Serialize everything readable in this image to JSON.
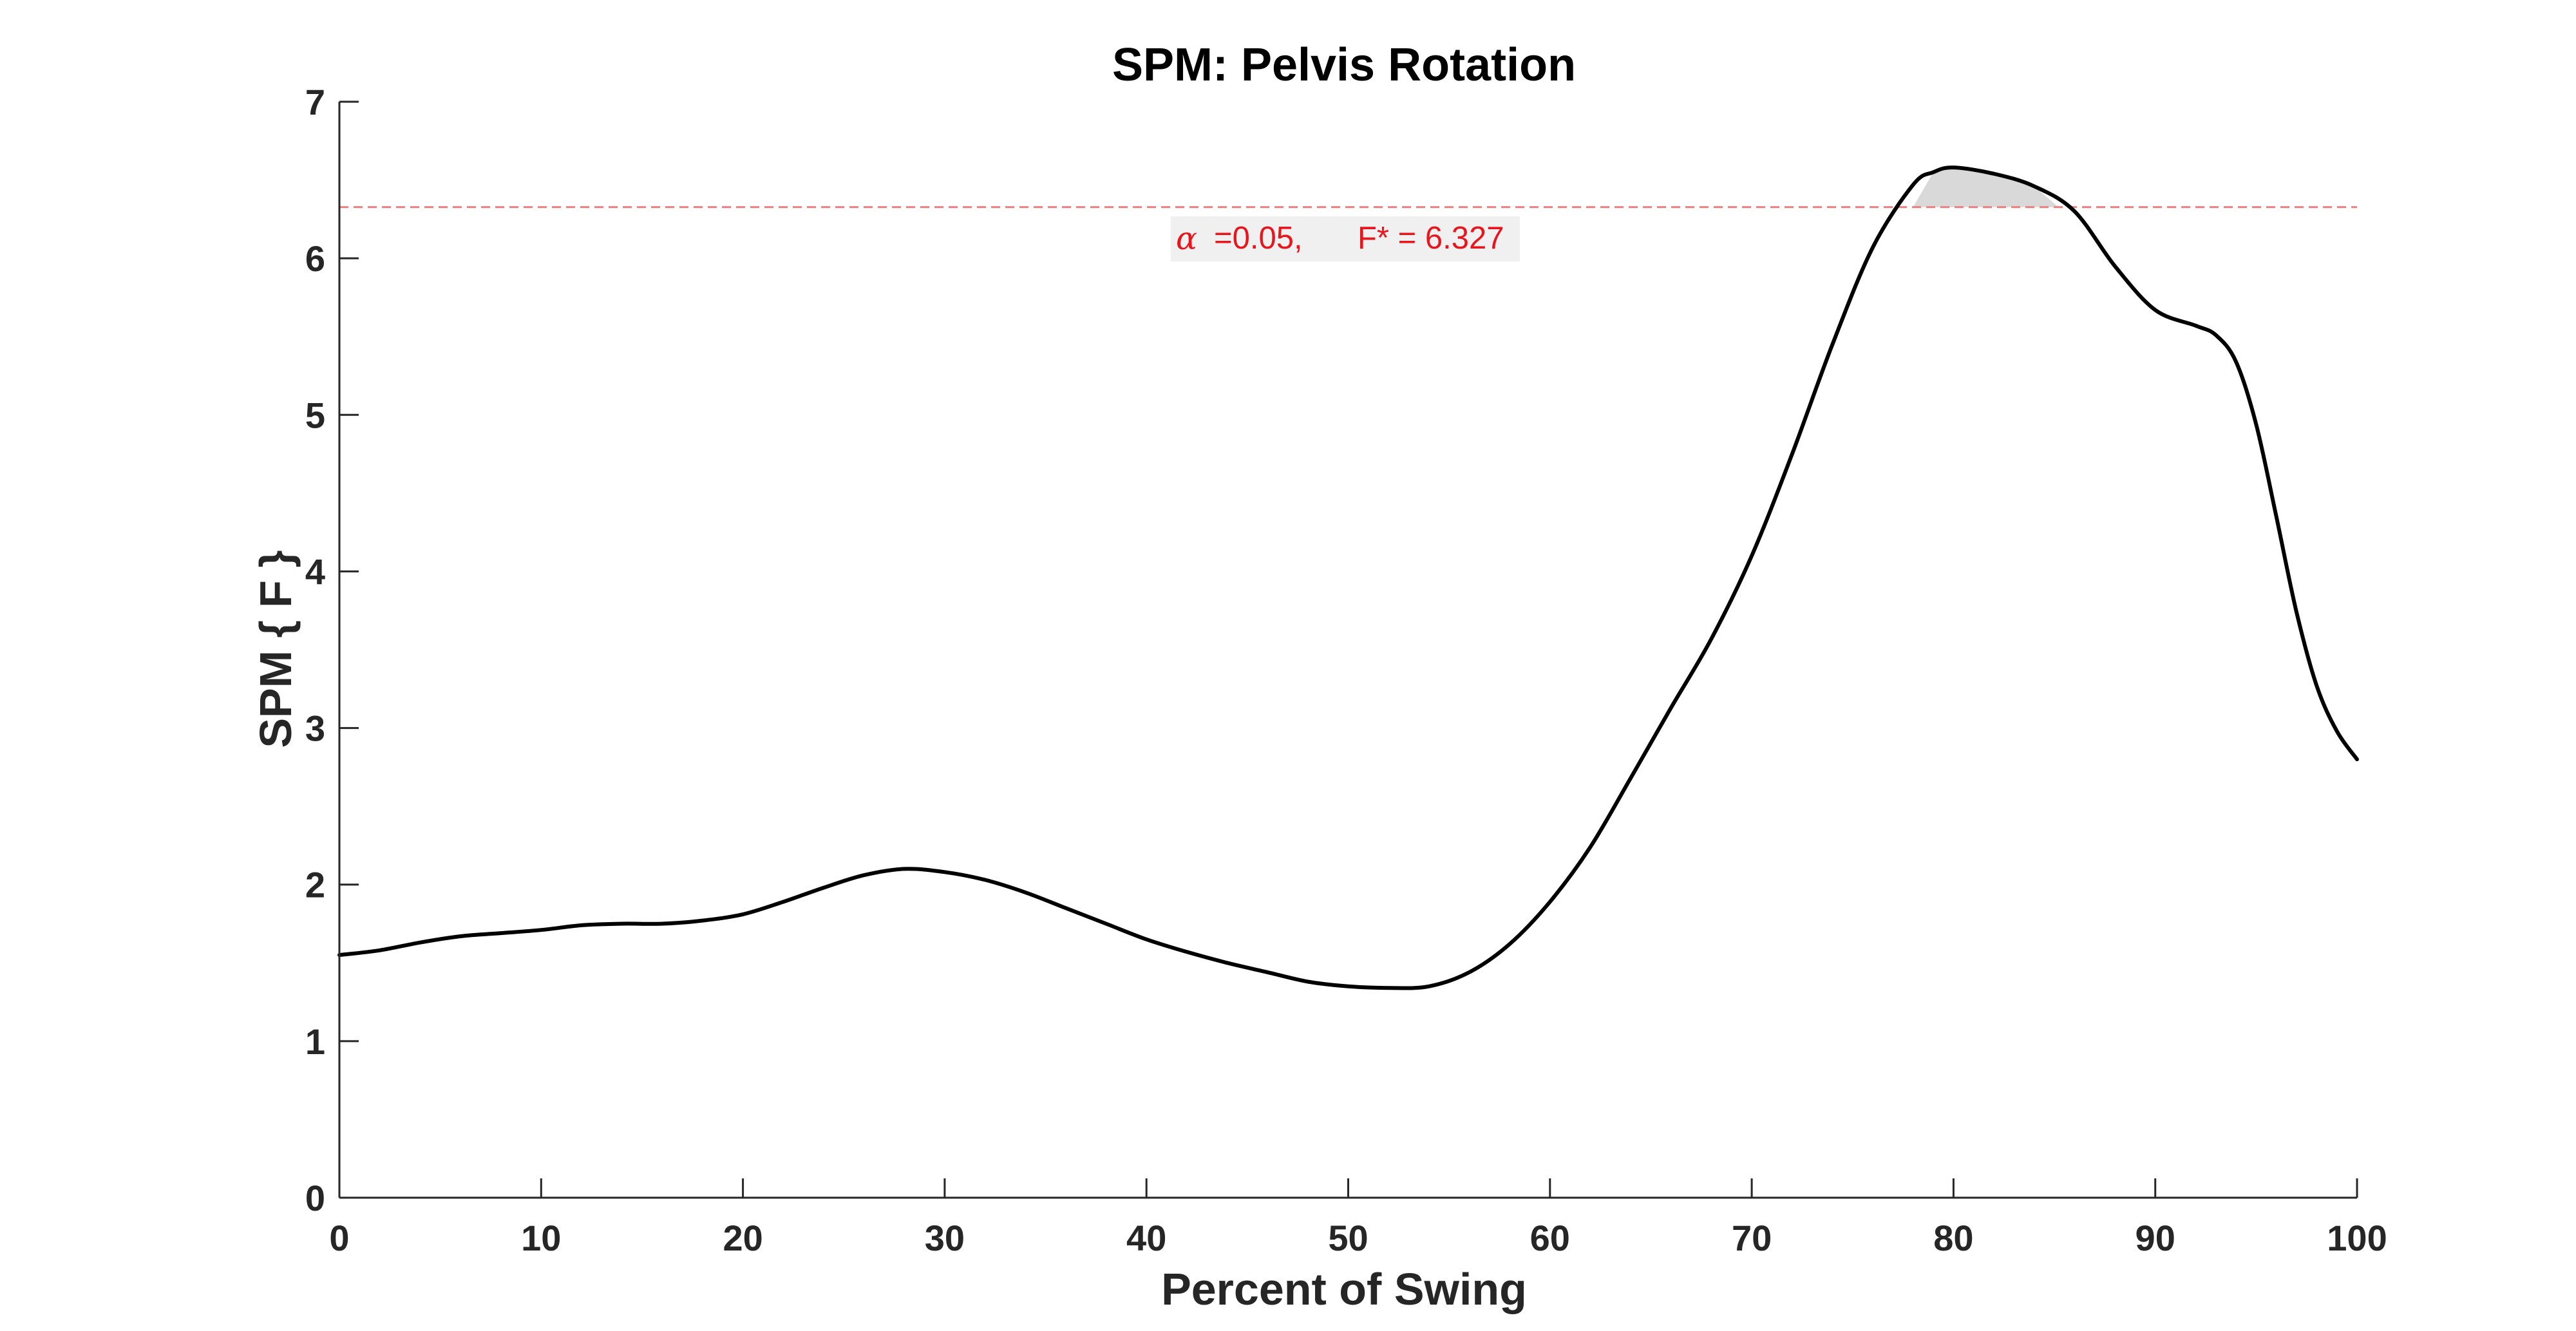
{
  "chart_data": {
    "type": "line",
    "title": "SPM: Pelvis Rotation",
    "xlabel": "Percent of Swing",
    "ylabel": "SPM { F }",
    "xlim": [
      0,
      100
    ],
    "ylim": [
      0,
      7
    ],
    "xticks": [
      0,
      10,
      20,
      30,
      40,
      50,
      60,
      70,
      80,
      90,
      100
    ],
    "yticks": [
      0,
      1,
      2,
      3,
      4,
      5,
      6,
      7
    ],
    "grid": false,
    "series": [
      {
        "color": "#000000",
        "x": [
          0,
          2,
          4,
          6,
          8,
          10,
          12,
          14,
          16,
          18,
          20,
          22,
          24,
          26,
          28,
          30,
          32,
          34,
          36,
          38,
          40,
          42,
          44,
          46,
          48,
          50,
          52,
          54,
          56,
          58,
          60,
          62,
          64,
          66,
          68,
          70,
          72,
          74,
          76,
          78,
          79,
          80,
          82,
          84,
          86,
          88,
          90,
          92,
          93,
          94,
          95,
          96,
          97,
          98,
          99,
          100
        ],
        "y": [
          1.55,
          1.58,
          1.63,
          1.67,
          1.69,
          1.71,
          1.74,
          1.75,
          1.75,
          1.77,
          1.81,
          1.89,
          1.98,
          2.06,
          2.1,
          2.08,
          2.03,
          1.95,
          1.85,
          1.75,
          1.65,
          1.57,
          1.5,
          1.44,
          1.38,
          1.35,
          1.34,
          1.35,
          1.44,
          1.62,
          1.89,
          2.24,
          2.68,
          3.13,
          3.57,
          4.1,
          4.75,
          5.45,
          6.07,
          6.47,
          6.55,
          6.58,
          6.54,
          6.46,
          6.3,
          5.95,
          5.67,
          5.57,
          5.51,
          5.34,
          4.94,
          4.35,
          3.74,
          3.27,
          2.98,
          2.8
        ]
      }
    ],
    "threshold": {
      "value": 6.327,
      "color": "#f08080",
      "style": "dashed",
      "alpha_symbol": "α",
      "alpha_value": "=0.05,",
      "fstar_label": "F* = 6.327"
    },
    "shaded_region": {
      "x_start": 78.0,
      "x_end": 85.2,
      "fill": "#d9d9d9"
    }
  }
}
